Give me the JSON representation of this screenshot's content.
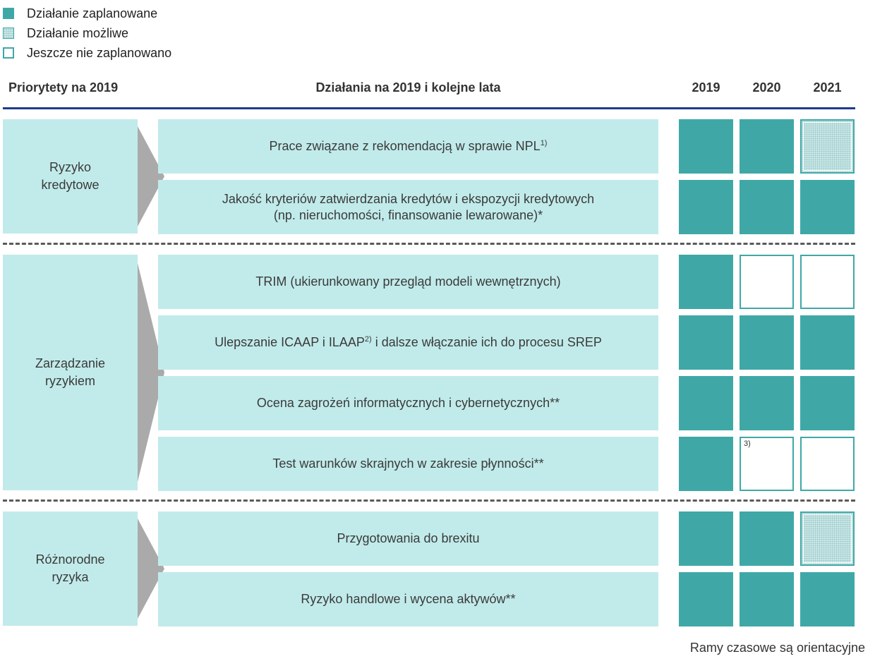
{
  "legend": [
    {
      "key": "planned",
      "label": "Działanie zaplanowane"
    },
    {
      "key": "possible",
      "label": "Działanie możliwe"
    },
    {
      "key": "notyet",
      "label": "Jeszcze nie zaplanowano"
    }
  ],
  "headers": {
    "priorities": "Priorytety na 2019",
    "actions": "Działania na 2019 i kolejne lata",
    "years": [
      "2019",
      "2020",
      "2021"
    ]
  },
  "groups": [
    {
      "priority": "Ryzyko kredytowe",
      "priority_lines": [
        "Ryzyko",
        "kredytowe"
      ],
      "actions": [
        {
          "text": "Prace związane z rekomendacją w sprawie NPL",
          "sup": "1)",
          "status": [
            "planned",
            "planned",
            "possible"
          ]
        },
        {
          "text_lines": [
            "Jakość kryteriów zatwierdzania kredytów i ekspozycji kredytowych",
            "(np. nieruchomości, finansowanie lewarowane)*"
          ],
          "status": [
            "planned",
            "planned",
            "planned"
          ]
        }
      ]
    },
    {
      "priority": "Zarządzanie ryzykiem",
      "priority_lines": [
        "Zarządzanie",
        "ryzykiem"
      ],
      "actions": [
        {
          "text": "TRIM (ukierunkowany przegląd modeli wewnętrznych)",
          "status": [
            "planned",
            "notyet",
            "notyet"
          ]
        },
        {
          "text": "Ulepszanie ICAAP i ILAAP",
          "sup": "2)",
          "text_after": " i dalsze włączanie ich do procesu SREP",
          "status": [
            "planned",
            "planned",
            "planned"
          ]
        },
        {
          "text": "Ocena zagrożeń informatycznych i cybernetycznych**",
          "status": [
            "planned",
            "planned",
            "planned"
          ]
        },
        {
          "text": "Test warunków skrajnych w zakresie płynności**",
          "status": [
            "planned",
            "notyet",
            "notyet"
          ],
          "cell_note": {
            "year_index": 1,
            "text": "3)"
          }
        }
      ]
    },
    {
      "priority": "Różnorodne ryzyka",
      "priority_lines": [
        "Różnorodne",
        "ryzyka"
      ],
      "actions": [
        {
          "text": "Przygotowania do brexitu",
          "status": [
            "planned",
            "planned",
            "possible"
          ]
        },
        {
          "text": "Ryzyko handlowe i wycena aktywów**",
          "status": [
            "planned",
            "planned",
            "planned"
          ]
        }
      ]
    }
  ],
  "footnote": "Ramy czasowe są orientacyjne",
  "colors": {
    "teal": "#3fa8a7",
    "light_teal": "#c1ebea",
    "navy": "#1c3c8c",
    "arrow": "#aaaaaa"
  }
}
